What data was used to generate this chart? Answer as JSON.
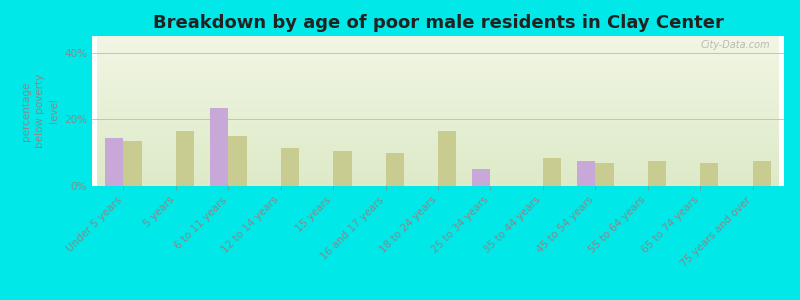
{
  "title": "Breakdown by age of poor male residents in Clay Center",
  "ylabel": "percentage\nbelow poverty\nlevel",
  "categories": [
    "Under 5 years",
    "5 years",
    "6 to 11 years",
    "12 to 14 years",
    "15 years",
    "16 and 17 years",
    "18 to 24 years",
    "25 to 34 years",
    "35 to 44 years",
    "45 to 54 years",
    "55 to 64 years",
    "65 to 74 years",
    "75 years and over"
  ],
  "clay_center": [
    14.5,
    0,
    23.5,
    0,
    0,
    0,
    0,
    5.0,
    0,
    7.5,
    0,
    0,
    0
  ],
  "nebraska": [
    13.5,
    16.5,
    15.0,
    11.5,
    10.5,
    10.0,
    16.5,
    0,
    8.5,
    7.0,
    7.5,
    7.0,
    7.5
  ],
  "clay_color": "#c8a8d8",
  "nebraska_color": "#c8cc90",
  "grad_top": "#f0f4e0",
  "grad_bottom": "#e8f2d0",
  "outer_bg": "#00e8e8",
  "ylim": [
    0,
    45
  ],
  "yticks": [
    0,
    20,
    40
  ],
  "ytick_labels": [
    "0%",
    "20%",
    "40%"
  ],
  "bar_width": 0.35,
  "title_fontsize": 13,
  "tick_fontsize": 7.5,
  "axis_label_color": "#888888",
  "tick_color": "#888888",
  "title_color": "#222222",
  "legend_text_color": "#336666",
  "watermark": "City-Data.com",
  "watermark_color": "#aaaaaa"
}
